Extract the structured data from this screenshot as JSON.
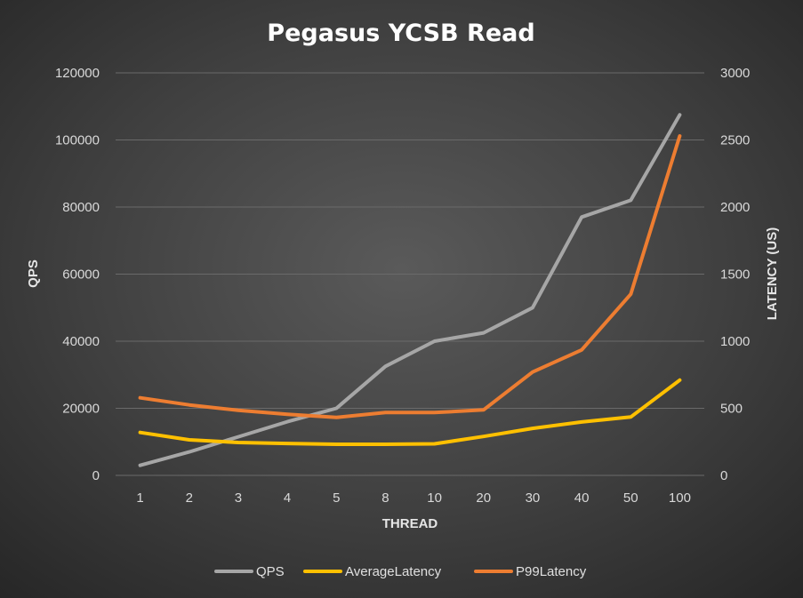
{
  "chart_data": {
    "type": "line",
    "title": "Pegasus YCSB Read",
    "xlabel": "THREAD",
    "ylabel_left": "QPS",
    "ylabel_right": "LATENCY (US)",
    "categories": [
      "1",
      "2",
      "3",
      "4",
      "5",
      "8",
      "10",
      "20",
      "30",
      "40",
      "50",
      "100"
    ],
    "y_left": {
      "min": 0,
      "max": 120000,
      "ticks": [
        "0",
        "20000",
        "40000",
        "60000",
        "80000",
        "100000",
        "120000"
      ]
    },
    "y_right": {
      "min": 0,
      "max": 3000,
      "ticks": [
        "0",
        "500",
        "1000",
        "1500",
        "2000",
        "2500",
        "3000"
      ]
    },
    "grid": true,
    "legend_position": "bottom",
    "series": [
      {
        "name": "QPS",
        "axis": "left",
        "color": "#a6a6a6",
        "values": [
          3000,
          7000,
          11500,
          16000,
          20000,
          32500,
          40000,
          42500,
          50000,
          77000,
          82000,
          107500
        ]
      },
      {
        "name": "AverageLatency",
        "axis": "right",
        "color": "#ffc000",
        "values": [
          320,
          265,
          245,
          238,
          232,
          232,
          235,
          290,
          350,
          398,
          435,
          710
        ]
      },
      {
        "name": "P99Latency",
        "axis": "right",
        "color": "#ed7d31",
        "values": [
          578,
          525,
          485,
          455,
          432,
          468,
          468,
          488,
          770,
          935,
          1350,
          2530
        ]
      }
    ]
  }
}
